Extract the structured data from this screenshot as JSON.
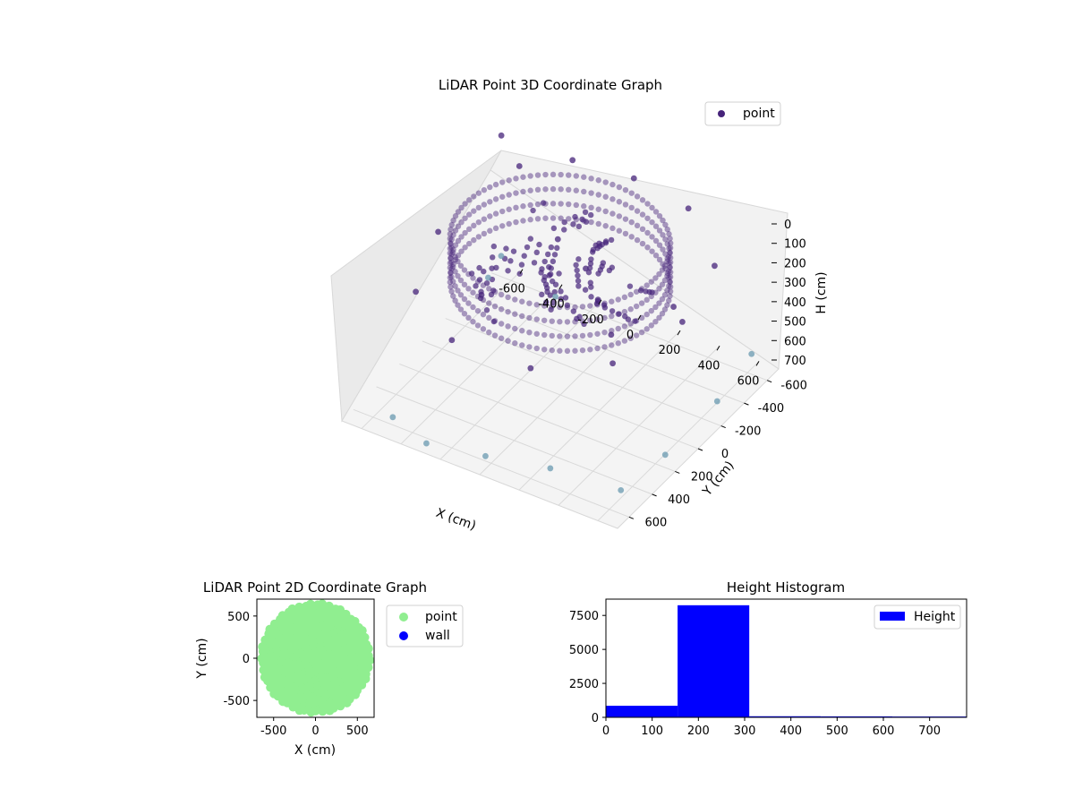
{
  "colors": {
    "point3d": "#46237a",
    "point3d_near": "#6a9ab0",
    "point2d": "#90ee90",
    "wall": "#0000ff",
    "hist": "#0000ff"
  },
  "chart_data": [
    {
      "type": "scatter",
      "projection": "3d",
      "title": "LiDAR Point 3D Coordinate Graph",
      "xlabel": "X (cm)",
      "ylabel": "Y (cm)",
      "zlabel": "H (cm)",
      "xlim": [
        -700,
        700
      ],
      "ylim": [
        -700,
        700
      ],
      "zlim": [
        750,
        0
      ],
      "z_inverted": true,
      "xticks": [
        "-600",
        "-400",
        "-200",
        "0",
        "200",
        "400",
        "600"
      ],
      "yticks": [
        "-600",
        "-400",
        "-200",
        "0",
        "200",
        "400",
        "600"
      ],
      "zticks": [
        "0",
        "100",
        "200",
        "300",
        "400",
        "500",
        "600",
        "700"
      ],
      "legend": {
        "labels": [
          "point"
        ],
        "placement": "top-right"
      },
      "grid": true,
      "description_of_shape": "dense ring/cylinder of points near H 150-300 cm with radius about 600 cm, plus sparse points scattered down to H 750 cm",
      "series": [
        {
          "name": "point",
          "color": "#46237a",
          "ring": {
            "center": [
              0,
              0
            ],
            "radius": 620,
            "h_top": 150,
            "h_bottom": 320
          },
          "sample_points": [
            {
              "x": -650,
              "y": 600,
              "h": 200
            },
            {
              "x": -500,
              "y": 500,
              "h": 230
            },
            {
              "x": -300,
              "y": 620,
              "h": 200
            },
            {
              "x": 0,
              "y": 640,
              "h": 190
            },
            {
              "x": 300,
              "y": 600,
              "h": 200
            },
            {
              "x": 550,
              "y": 400,
              "h": 260
            },
            {
              "x": 620,
              "y": 0,
              "h": 280
            },
            {
              "x": 500,
              "y": -400,
              "h": 300
            },
            {
              "x": 200,
              "y": -600,
              "h": 320
            },
            {
              "x": -200,
              "y": -600,
              "h": 330
            },
            {
              "x": -500,
              "y": -400,
              "h": 320
            },
            {
              "x": -620,
              "y": 0,
              "h": 300
            },
            {
              "x": 100,
              "y": 50,
              "h": 250
            },
            {
              "x": -100,
              "y": 150,
              "h": 240
            },
            {
              "x": 250,
              "y": -100,
              "h": 260
            },
            {
              "x": -680,
              "y": 650,
              "h": 700
            },
            {
              "x": -600,
              "y": 400,
              "h": 650
            },
            {
              "x": -500,
              "y": -600,
              "h": 720
            },
            {
              "x": -300,
              "y": -650,
              "h": 740
            },
            {
              "x": 0,
              "y": -650,
              "h": 700
            },
            {
              "x": 300,
              "y": -600,
              "h": 680
            },
            {
              "x": 600,
              "y": -500,
              "h": 720
            },
            {
              "x": 650,
              "y": -200,
              "h": 700
            },
            {
              "x": 680,
              "y": 200,
              "h": 660
            },
            {
              "x": 650,
              "y": 550,
              "h": 640
            },
            {
              "x": -200,
              "y": 300,
              "h": 560
            },
            {
              "x": 200,
              "y": 100,
              "h": 500
            },
            {
              "x": -400,
              "y": 0,
              "h": 480
            },
            {
              "x": 400,
              "y": 300,
              "h": 420
            }
          ]
        }
      ]
    },
    {
      "type": "scatter",
      "title": "LiDAR Point 2D Coordinate Graph",
      "xlabel": "X (cm)",
      "ylabel": "Y (cm)",
      "xlim": [
        -700,
        700
      ],
      "ylim": [
        -700,
        700
      ],
      "xticks": [
        "-500",
        "0",
        "500"
      ],
      "yticks": [
        "-500",
        "0",
        "500"
      ],
      "legend": {
        "labels": [
          "point",
          "wall"
        ],
        "placement": "outside-right"
      },
      "grid": false,
      "series": [
        {
          "name": "point",
          "color": "#90ee90",
          "shape": "filled disc, center (0,0), radius about 650, clipped by axes"
        },
        {
          "name": "wall",
          "color": "#0000ff",
          "points": []
        }
      ]
    },
    {
      "type": "bar",
      "subtype": "histogram",
      "title": "Height Histogram",
      "xlabel": "",
      "ylabel": "",
      "xlim": [
        0,
        780
      ],
      "ylim": [
        0,
        8700
      ],
      "xticks": [
        "0",
        "100",
        "200",
        "300",
        "400",
        "500",
        "600",
        "700"
      ],
      "yticks": [
        "0",
        "2500",
        "5000",
        "7500"
      ],
      "legend": {
        "labels": [
          "Height"
        ],
        "placement": "top-right"
      },
      "series": [
        {
          "name": "Height",
          "color": "#0000ff",
          "bins": [
            {
              "start": 0,
              "end": 155,
              "count": 850
            },
            {
              "start": 155,
              "end": 310,
              "count": 8250
            },
            {
              "start": 310,
              "end": 465,
              "count": 80
            },
            {
              "start": 465,
              "end": 620,
              "count": 70
            },
            {
              "start": 620,
              "end": 780,
              "count": 60
            }
          ]
        }
      ]
    }
  ]
}
